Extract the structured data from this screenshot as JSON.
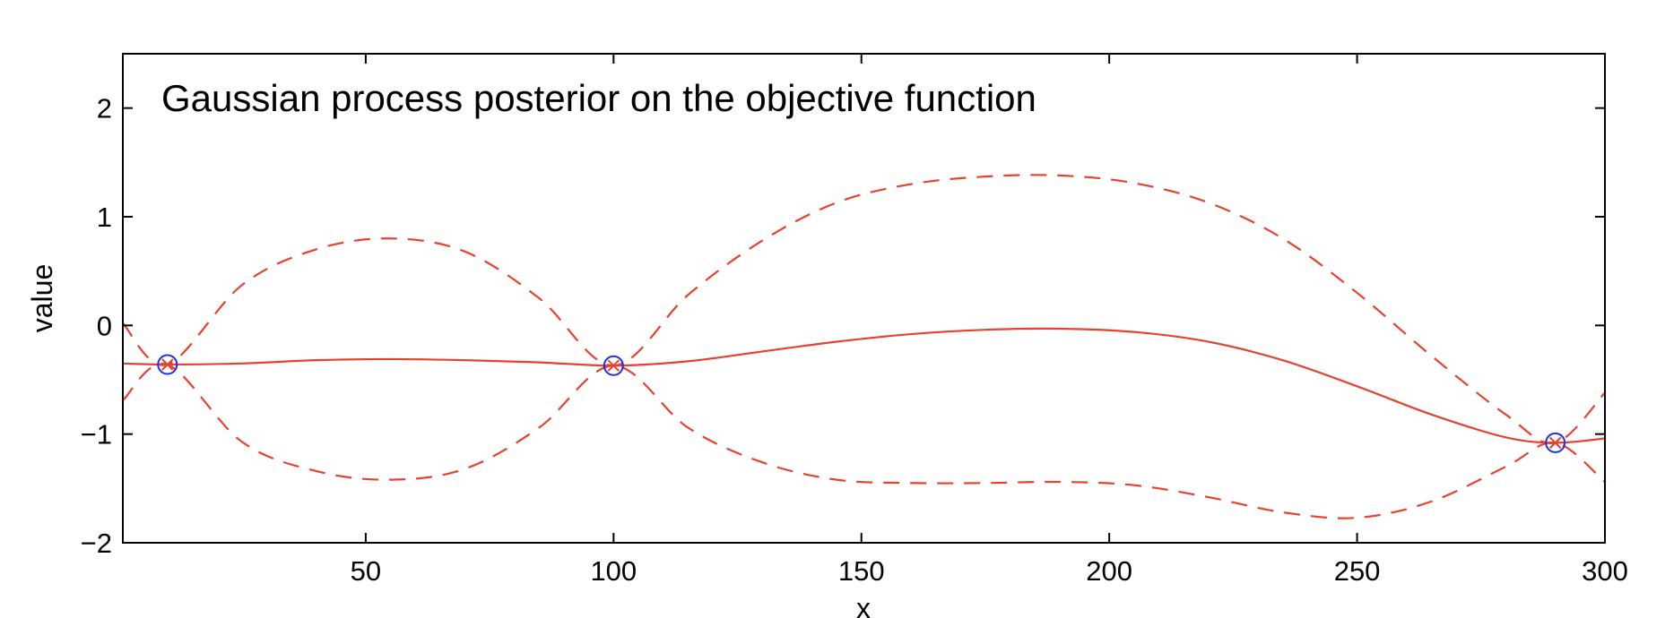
{
  "chart_data": {
    "type": "line",
    "title": "Gaussian process posterior on the objective function",
    "xlabel": "x",
    "ylabel": "value",
    "xlim": [
      1,
      300
    ],
    "ylim": [
      -2,
      2.5
    ],
    "xticks": [
      50,
      100,
      150,
      200,
      250,
      300
    ],
    "yticks": [
      -2,
      -1,
      0,
      1,
      2
    ],
    "xtick_labels": [
      "50",
      "100",
      "150",
      "200",
      "250",
      "300"
    ],
    "ytick_labels": [
      "−2",
      "−1",
      "0",
      "1",
      "2"
    ],
    "grid": false,
    "series": [
      {
        "role": "mean",
        "style": "solid",
        "color": "#e8412f",
        "x": [
          1,
          10,
          25,
          40,
          55,
          70,
          85,
          100,
          115,
          130,
          145,
          160,
          175,
          190,
          205,
          220,
          235,
          250,
          265,
          280,
          290,
          300
        ],
        "y": [
          -0.35,
          -0.36,
          -0.35,
          -0.32,
          -0.31,
          -0.32,
          -0.34,
          -0.37,
          -0.33,
          -0.24,
          -0.15,
          -0.08,
          -0.04,
          -0.03,
          -0.06,
          -0.15,
          -0.32,
          -0.56,
          -0.82,
          -1.03,
          -1.08,
          -1.04
        ]
      },
      {
        "role": "upper",
        "style": "dashed",
        "color": "#e8412f",
        "x": [
          1,
          10,
          25,
          40,
          55,
          70,
          85,
          100,
          115,
          130,
          145,
          160,
          175,
          190,
          205,
          220,
          235,
          250,
          265,
          280,
          290,
          300
        ],
        "y": [
          0.02,
          -0.36,
          0.37,
          0.7,
          0.8,
          0.68,
          0.25,
          -0.37,
          0.28,
          0.78,
          1.13,
          1.3,
          1.37,
          1.38,
          1.31,
          1.13,
          0.8,
          0.3,
          -0.28,
          -0.82,
          -1.08,
          -0.62
        ]
      },
      {
        "role": "lower",
        "style": "dashed",
        "color": "#e8412f",
        "x": [
          1,
          10,
          25,
          40,
          55,
          70,
          85,
          100,
          115,
          130,
          145,
          160,
          175,
          190,
          205,
          220,
          235,
          250,
          265,
          280,
          290,
          300
        ],
        "y": [
          -0.69,
          -0.36,
          -1.07,
          -1.34,
          -1.42,
          -1.32,
          -0.94,
          -0.37,
          -0.94,
          -1.26,
          -1.42,
          -1.45,
          -1.45,
          -1.44,
          -1.47,
          -1.58,
          -1.72,
          -1.77,
          -1.62,
          -1.3,
          -1.08,
          -1.44
        ]
      }
    ],
    "observations": {
      "marker": "circle",
      "color": "#1f2ee6",
      "x": [
        10,
        100,
        290
      ],
      "y": [
        -0.36,
        -0.37,
        -1.08
      ]
    }
  }
}
